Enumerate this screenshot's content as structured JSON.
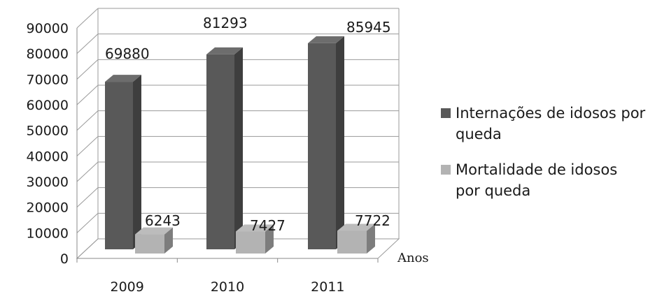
{
  "chart_data": {
    "type": "bar",
    "categories": [
      "2009",
      "2010",
      "2011"
    ],
    "series": [
      {
        "name": "Internações de idosos por queda",
        "values": [
          69880,
          81293,
          85945
        ],
        "color": "#595959"
      },
      {
        "name": "Mortalidade de idosos por queda",
        "values": [
          6243,
          7427,
          7722
        ],
        "color": "#b3b3b3"
      }
    ],
    "xlabel": "Anos",
    "ylabel": "",
    "ylim": [
      0,
      90000
    ],
    "yticks": [
      "0",
      "10000",
      "20000",
      "30000",
      "40000",
      "50000",
      "60000",
      "70000",
      "80000",
      "90000"
    ],
    "data_labels": [
      "69880",
      "6243",
      "81293",
      "7427",
      "85945",
      "7722"
    ],
    "legend": {
      "position": "right",
      "entries": [
        {
          "lines": [
            "Internações de idosos por",
            "queda"
          ]
        },
        {
          "lines": [
            "Mortalidade de idosos",
            "por queda"
          ]
        }
      ]
    },
    "grid": true,
    "style": "3d-column"
  }
}
